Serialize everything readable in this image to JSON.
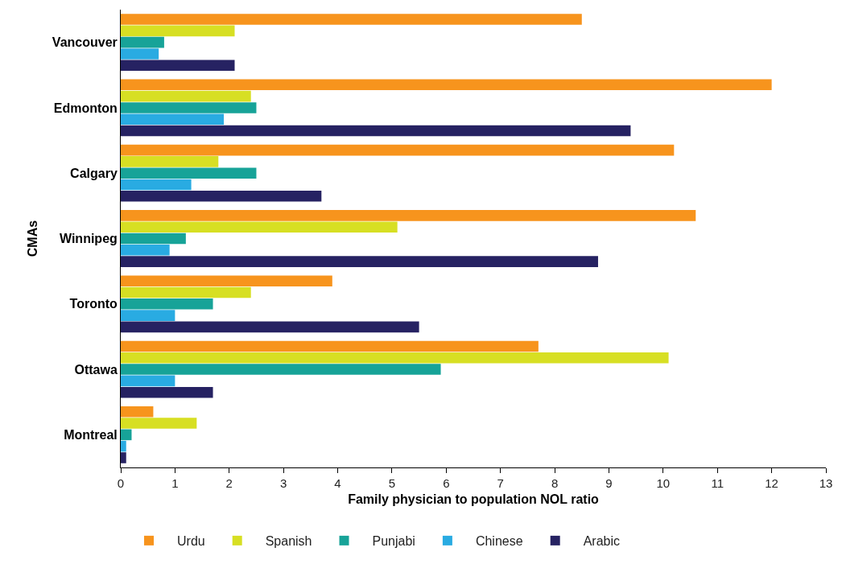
{
  "chart_data": {
    "type": "bar",
    "orientation": "horizontal",
    "xlabel": "Family physician to population NOL ratio",
    "ylabel": "CMAs",
    "categories": [
      "Vancouver",
      "Edmonton",
      "Calgary",
      "Winnipeg",
      "Toronto",
      "Ottawa",
      "Montreal"
    ],
    "series": [
      {
        "name": "Urdu",
        "color": "#f7941d",
        "values": [
          8.5,
          12.0,
          10.2,
          10.6,
          3.9,
          7.7,
          0.6
        ]
      },
      {
        "name": "Spanish",
        "color": "#d7df23",
        "values": [
          2.1,
          2.4,
          1.8,
          5.1,
          2.4,
          10.1,
          1.4
        ]
      },
      {
        "name": "Punjabi",
        "color": "#17a398",
        "values": [
          0.8,
          2.5,
          2.5,
          1.2,
          1.7,
          5.9,
          0.2
        ]
      },
      {
        "name": "Chinese",
        "color": "#29abe2",
        "values": [
          0.7,
          1.9,
          1.3,
          0.9,
          1.0,
          1.0,
          0.1
        ]
      },
      {
        "name": "Arabic",
        "color": "#262262",
        "values": [
          2.1,
          9.4,
          3.7,
          8.8,
          5.5,
          1.7,
          0.1
        ]
      }
    ],
    "xlim": [
      0,
      13
    ],
    "xticks": [
      0,
      1,
      2,
      3,
      4,
      5,
      6,
      7,
      8,
      9,
      10,
      11,
      12,
      13
    ],
    "grid": false,
    "legend": "bottom"
  }
}
